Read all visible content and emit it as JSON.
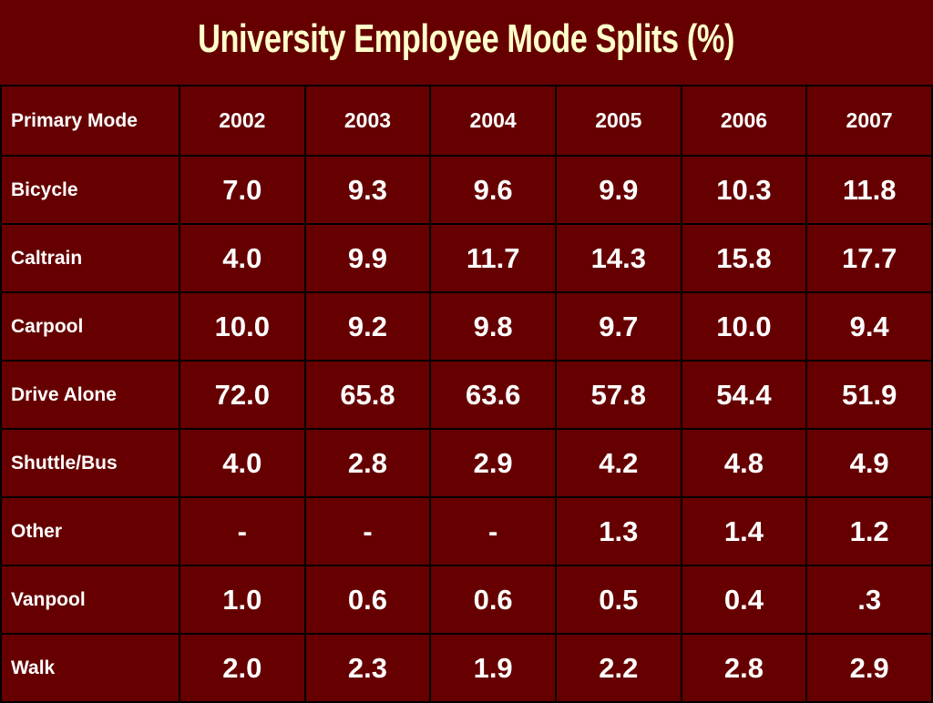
{
  "title": "University Employee Mode Splits (%)",
  "table": {
    "columns": [
      "Primary Mode",
      "2002",
      "2003",
      "2004",
      "2005",
      "2006",
      "2007"
    ],
    "rows": [
      [
        "Bicycle",
        "7.0",
        "9.3",
        "9.6",
        "9.9",
        "10.3",
        "11.8"
      ],
      [
        "Caltrain",
        "4.0",
        "9.9",
        "11.7",
        "14.3",
        "15.8",
        "17.7"
      ],
      [
        "Carpool",
        "10.0",
        "9.2",
        "9.8",
        "9.7",
        "10.0",
        "9.4"
      ],
      [
        "Drive Alone",
        "72.0",
        "65.8",
        "63.6",
        "57.8",
        "54.4",
        "51.9"
      ],
      [
        "Shuttle/Bus",
        "4.0",
        "2.8",
        "2.9",
        "4.2",
        "4.8",
        "4.9"
      ],
      [
        "Other",
        "-",
        "-",
        "-",
        "1.3",
        "1.4",
        "1.2"
      ],
      [
        "Vanpool",
        "1.0",
        "0.6",
        "0.6",
        "0.5",
        "0.4",
        ".3"
      ],
      [
        "Walk",
        "2.0",
        "2.3",
        "1.9",
        "2.2",
        "2.8",
        "2.9"
      ]
    ]
  }
}
